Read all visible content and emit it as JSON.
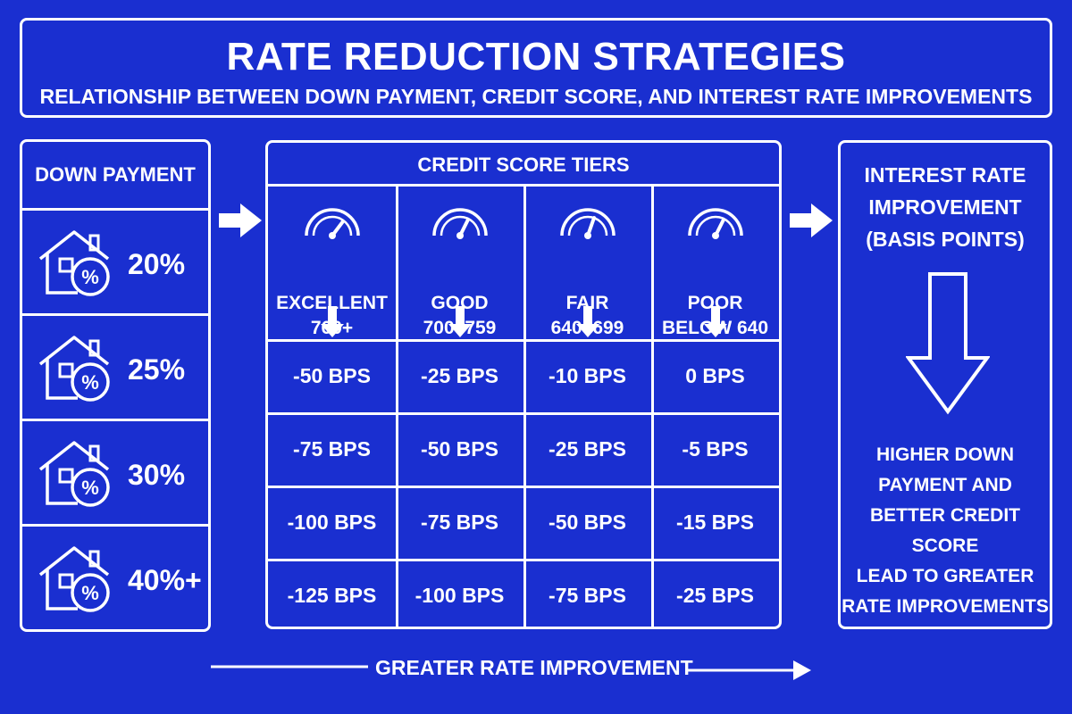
{
  "header": {
    "title": "RATE REDUCTION STRATEGIES",
    "subtitle": "RELATIONSHIP BETWEEN DOWN PAYMENT, CREDIT SCORE, AND INTEREST RATE IMPROVEMENTS"
  },
  "down_payment": {
    "title": "DOWN PAYMENT",
    "icon": "house-percent-icon",
    "rows": [
      {
        "pct": "20%"
      },
      {
        "pct": "25%"
      },
      {
        "pct": "30%"
      },
      {
        "pct": "40%+"
      }
    ]
  },
  "credit": {
    "title": "CREDIT SCORE TIERS",
    "tiers": [
      {
        "name": "EXCELLENT",
        "range": "760+"
      },
      {
        "name": "GOOD",
        "range": "700–759"
      },
      {
        "name": "FAIR",
        "range": "640–699"
      },
      {
        "name": "POOR",
        "range": "BELOW 640"
      }
    ],
    "rows": [
      [
        "-50 BPS",
        "-25 BPS",
        "-10 BPS",
        "0 BPS"
      ],
      [
        "-75 BPS",
        "-50 BPS",
        "-25 BPS",
        "-5 BPS"
      ],
      [
        "-100 BPS",
        "-75 BPS",
        "-50 BPS",
        "-15 BPS"
      ],
      [
        "-125 BPS",
        "-100 BPS",
        "-75 BPS",
        "-25 BPS"
      ]
    ]
  },
  "improvement": {
    "title_lines": [
      "INTEREST RATE",
      "IMPROVEMENT",
      "(BASIS POINTS)"
    ],
    "note_lines": [
      "HIGHER DOWN",
      "PAYMENT AND",
      "BETTER CREDIT SCORE",
      "LEAD TO GREATER",
      "RATE IMPROVEMENTS"
    ]
  },
  "footer": {
    "label": "GREATER RATE IMPROVEMENT"
  },
  "colors": {
    "background": "#1a2fd0",
    "foreground": "#ffffff"
  }
}
